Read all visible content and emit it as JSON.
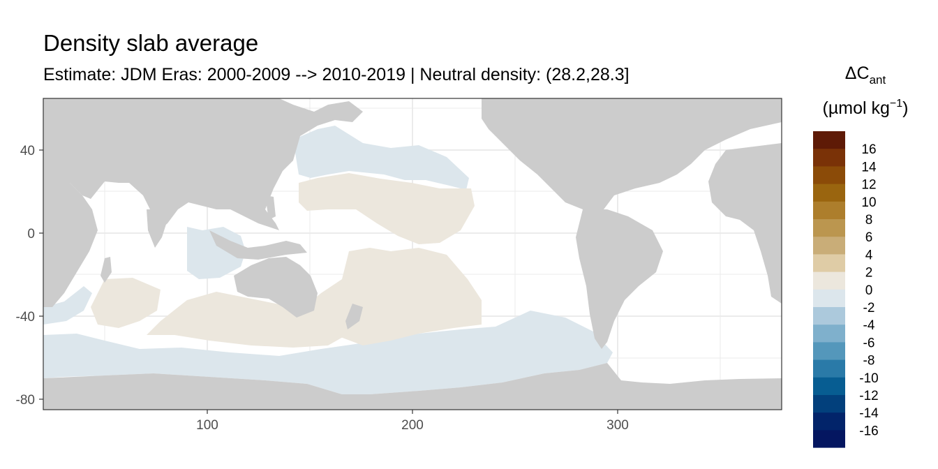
{
  "title": "Density slab average",
  "subtitle": "Estimate: JDM Eras: 2000-2009 --> 2010-2019 | Neutral density: (28.2,28.3]",
  "legend": {
    "title_line1_main": "ΔC",
    "title_line1_sub": "ant",
    "title_line2_pre": "(µmol kg",
    "title_line2_sup": "−1",
    "title_line2_post": ")",
    "bins": [
      {
        "label": "16",
        "color": "#5e1a06"
      },
      {
        "label": "14",
        "color": "#7a3207"
      },
      {
        "label": "12",
        "color": "#8b4b08"
      },
      {
        "label": "10",
        "color": "#9a650f"
      },
      {
        "label": "8",
        "color": "#ad7e2c"
      },
      {
        "label": "6",
        "color": "#bb964f"
      },
      {
        "label": "4",
        "color": "#c9ad78"
      },
      {
        "label": "2",
        "color": "#dfcca6"
      },
      {
        "label": "0",
        "color": "#ece7dd"
      },
      {
        "label": "-2",
        "color": "#dce6ec"
      },
      {
        "label": "-4",
        "color": "#acc9dc"
      },
      {
        "label": "-6",
        "color": "#7fb0cc"
      },
      {
        "label": "-8",
        "color": "#5497bb"
      },
      {
        "label": "-10",
        "color": "#2a7aa8"
      },
      {
        "label": "-12",
        "color": "#075d92"
      },
      {
        "label": "-14",
        "color": "#02407c"
      },
      {
        "label": "-16",
        "color": "#02246a"
      }
    ],
    "extra_bin_color": "#041660"
  },
  "axes": {
    "x_ticks": [
      "100",
      "200",
      "300"
    ],
    "y_ticks": [
      "40",
      "0",
      "-40",
      "-80"
    ],
    "x_range": [
      20,
      380
    ],
    "y_range": [
      -85,
      65
    ]
  },
  "colors": {
    "land": "#cccccc",
    "ocean_empty": "#ffffff",
    "positive_0_2": "#ece7dd",
    "negative_0_2": "#dce6ec",
    "grid": "#ebebeb",
    "border": "#333333"
  },
  "chart_data": {
    "type": "heatmap",
    "title": "Density slab average",
    "subtitle": "Estimate: JDM Eras: 2000-2009 --> 2010-2019 | Neutral density: (28.2,28.3]",
    "xlabel": "",
    "ylabel": "",
    "xlim": [
      20,
      380
    ],
    "ylim": [
      -85,
      65
    ],
    "x_ticks": [
      100,
      200,
      300
    ],
    "y_ticks": [
      40,
      0,
      -40,
      -80
    ],
    "grid": true,
    "legend_position": "right",
    "regions": [
      {
        "area": "North Pacific subpolar",
        "bin": "-2 to 0"
      },
      {
        "area": "North Pacific subtropical / central Pacific",
        "bin": "0 to 2"
      },
      {
        "area": "Eastern Indian Ocean",
        "bin": "-2 to 0"
      },
      {
        "area": "South Indian Ocean",
        "bin": "0 to 2"
      },
      {
        "area": "South Pacific",
        "bin": "0 to 2"
      },
      {
        "area": "Southern Ocean near Antarctica",
        "bin": "-2 to 0"
      },
      {
        "area": "Atlantic Ocean",
        "bin": "no data"
      }
    ]
  }
}
